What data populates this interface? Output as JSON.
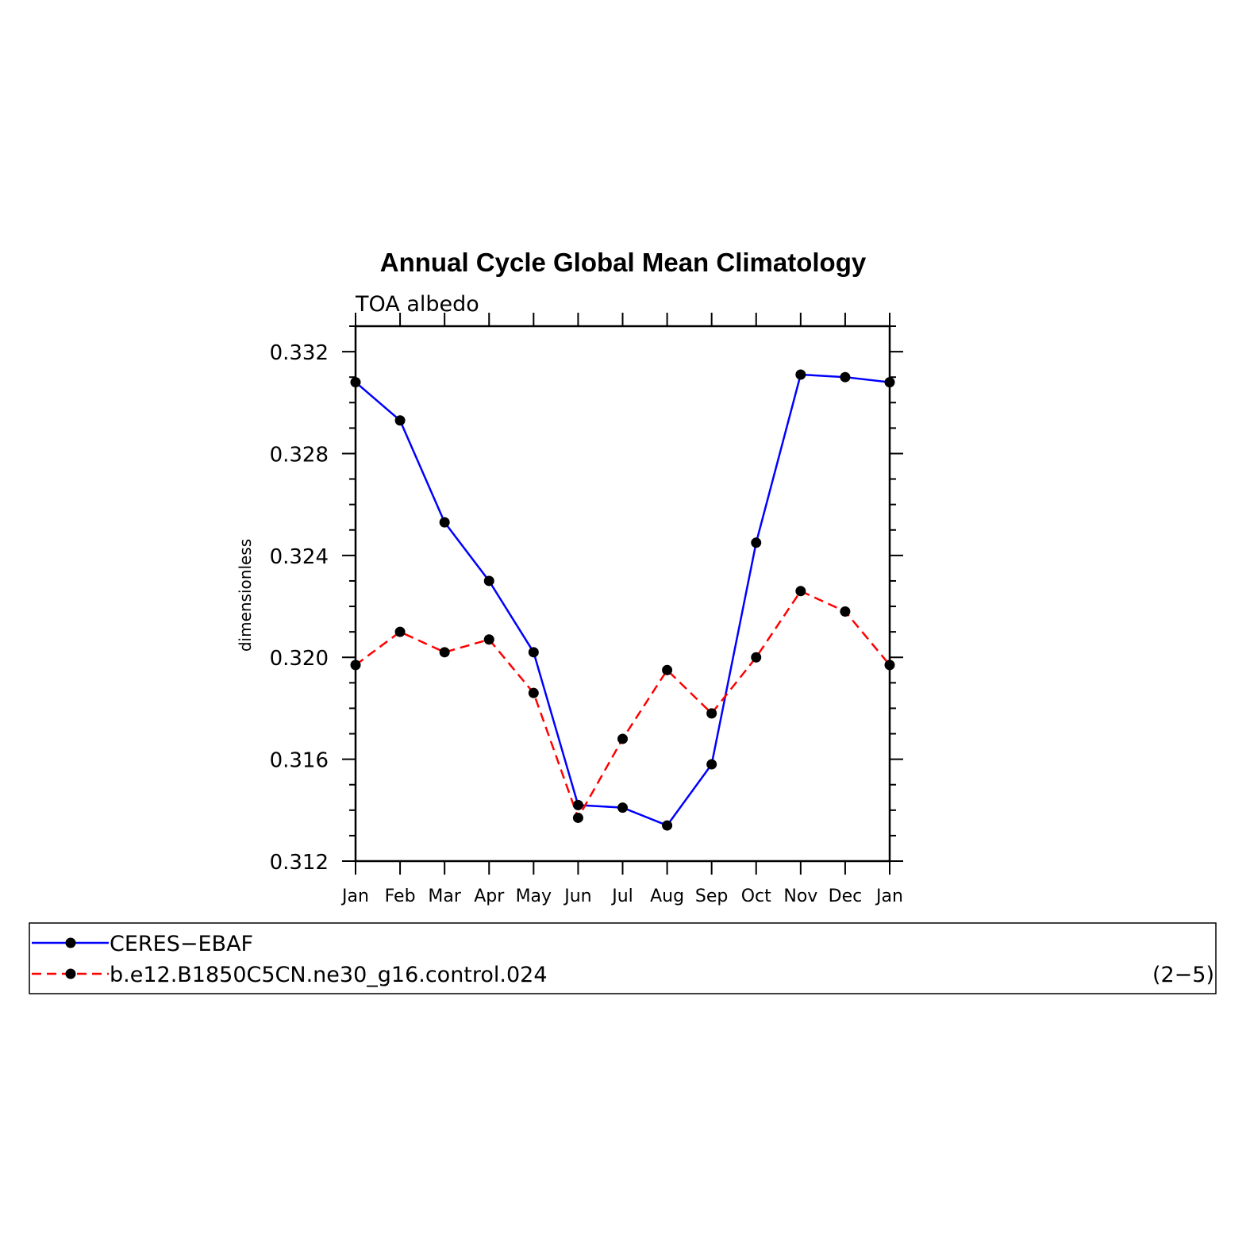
{
  "chart_data": {
    "type": "line",
    "title": "Annual Cycle Global Mean Climatology",
    "subtitle": "TOA albedo",
    "xlabel": "",
    "ylabel": "dimensionless",
    "categories": [
      "Jan",
      "Feb",
      "Mar",
      "Apr",
      "May",
      "Jun",
      "Jul",
      "Aug",
      "Sep",
      "Oct",
      "Nov",
      "Dec",
      "Jan"
    ],
    "ylim": [
      0.312,
      0.333
    ],
    "yticks": [
      "0.312",
      "0.316",
      "0.320",
      "0.324",
      "0.328",
      "0.332"
    ],
    "grid": false,
    "legend_position": "bottom",
    "panel_label": "(2−5)",
    "series": [
      {
        "name": "CERES−EBAF",
        "color": "#0000ff",
        "style": "solid",
        "marker": "dot",
        "values": [
          0.3308,
          0.3293,
          0.3253,
          0.323,
          0.3202,
          0.3142,
          0.3141,
          0.3134,
          0.3158,
          0.3245,
          0.3311,
          0.331,
          0.3308
        ]
      },
      {
        "name": "b.e12.B1850C5CN.ne30_g16.control.024",
        "color": "#ff0000",
        "style": "dashed",
        "marker": "dot",
        "values": [
          0.3197,
          0.321,
          0.3202,
          0.3207,
          0.3186,
          0.3137,
          0.3168,
          0.3195,
          0.3178,
          0.32,
          0.3226,
          0.3218,
          0.3197
        ]
      }
    ]
  }
}
